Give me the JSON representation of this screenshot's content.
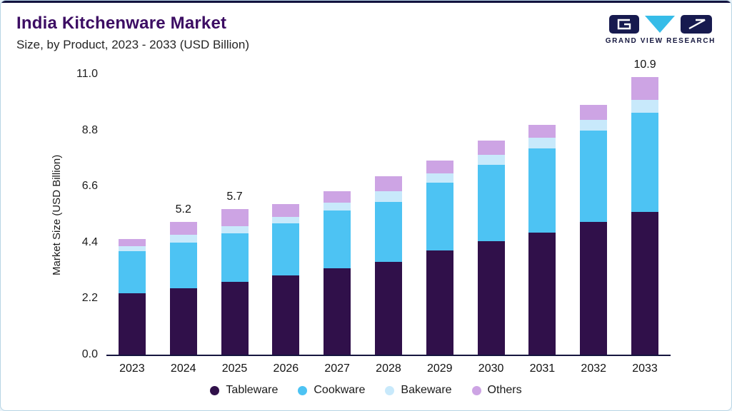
{
  "header": {
    "title": "India Kitchenware Market",
    "subtitle": "Size, by Product, 2023 - 2033 (USD Billion)"
  },
  "brand": {
    "name": "GRAND VIEW RESEARCH",
    "navy": "#171a4f",
    "cyan": "#36bce8"
  },
  "chart_data": {
    "type": "bar",
    "stacked": true,
    "title": "India Kitchenware Market",
    "subtitle": "Size, by Product, 2023 - 2033 (USD Billion)",
    "ylabel": "Market Size (USD Billion)",
    "xlabel": "",
    "ylim": [
      0,
      11
    ],
    "yticks": [
      "0.0",
      "2.2",
      "4.4",
      "6.6",
      "8.8",
      "11.0"
    ],
    "grid": false,
    "legend_position": "bottom",
    "categories": [
      "2023",
      "2024",
      "2025",
      "2026",
      "2027",
      "2028",
      "2029",
      "2030",
      "2031",
      "2032",
      "2033"
    ],
    "series": [
      {
        "name": "Tableware",
        "color": "#30104a",
        "values": [
          2.4,
          2.6,
          2.85,
          3.1,
          3.4,
          3.65,
          4.1,
          4.45,
          4.8,
          5.2,
          5.6
        ]
      },
      {
        "name": "Cookware",
        "color": "#4dc3f3",
        "values": [
          1.65,
          1.8,
          1.9,
          2.05,
          2.25,
          2.35,
          2.65,
          3.0,
          3.3,
          3.6,
          3.9
        ]
      },
      {
        "name": "Bakeware",
        "color": "#c8e9fb",
        "values": [
          0.2,
          0.3,
          0.3,
          0.25,
          0.3,
          0.4,
          0.35,
          0.4,
          0.4,
          0.4,
          0.5
        ]
      },
      {
        "name": "Others",
        "color": "#cda4e4",
        "values": [
          0.3,
          0.5,
          0.65,
          0.5,
          0.45,
          0.6,
          0.5,
          0.55,
          0.5,
          0.6,
          0.9
        ]
      }
    ],
    "totals": [
      4.55,
      5.2,
      5.7,
      5.9,
      6.4,
      7.0,
      7.6,
      8.4,
      9.0,
      9.8,
      10.9
    ],
    "bar_labels": {
      "2024": "5.2",
      "2025": "5.7",
      "2033": "10.9"
    }
  }
}
